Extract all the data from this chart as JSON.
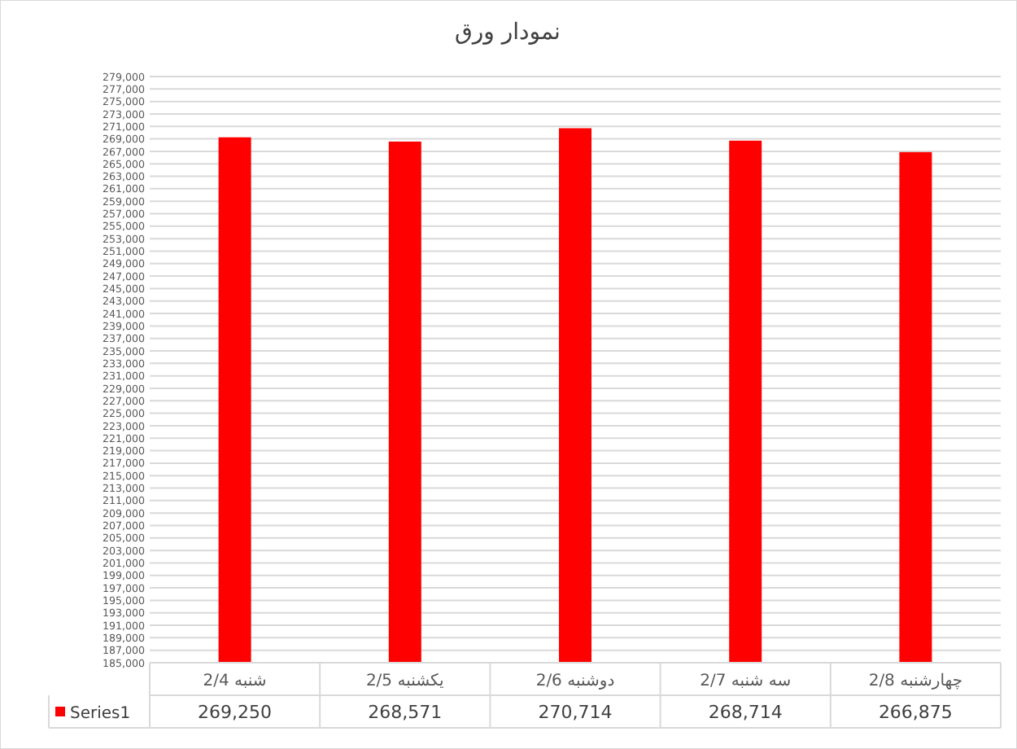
{
  "chart_data": {
    "type": "bar",
    "title": "نمودار ورق",
    "categories": [
      "شنبه 2/4",
      "یکشنبه 2/5",
      "دوشنبه 2/6",
      "سه شنبه 2/7",
      "چهارشنبه 2/8"
    ],
    "series": [
      {
        "name": "Series1",
        "color": "#ff0000",
        "values": [
          269250,
          268571,
          270714,
          268714,
          266875
        ],
        "value_labels": [
          "269,250",
          "268,571",
          "270,714",
          "268,714",
          "266,875"
        ]
      }
    ],
    "ylim": [
      185000,
      279000
    ],
    "yticks": [
      {
        "value": 185000,
        "label": "185,000"
      },
      {
        "value": 187000,
        "label": "187,000"
      },
      {
        "value": 189000,
        "label": "189,000"
      },
      {
        "value": 191000,
        "label": "191,000"
      },
      {
        "value": 193000,
        "label": "193,000"
      },
      {
        "value": 195000,
        "label": "195,000"
      },
      {
        "value": 197000,
        "label": "197,000"
      },
      {
        "value": 199000,
        "label": "199,000"
      },
      {
        "value": 201000,
        "label": "201,000"
      },
      {
        "value": 203000,
        "label": "203,000"
      },
      {
        "value": 205000,
        "label": "205,000"
      },
      {
        "value": 207000,
        "label": "207,000"
      },
      {
        "value": 209000,
        "label": "209,000"
      },
      {
        "value": 211000,
        "label": "211,000"
      },
      {
        "value": 213000,
        "label": "213,000"
      },
      {
        "value": 215000,
        "label": "215,000"
      },
      {
        "value": 217000,
        "label": "217,000"
      },
      {
        "value": 219000,
        "label": "219,000"
      },
      {
        "value": 221000,
        "label": "221,000"
      },
      {
        "value": 223000,
        "label": "223,000"
      },
      {
        "value": 225000,
        "label": "225,000"
      },
      {
        "value": 227000,
        "label": "227,000"
      },
      {
        "value": 229000,
        "label": "229,000"
      },
      {
        "value": 231000,
        "label": "231,000"
      },
      {
        "value": 233000,
        "label": "233,000"
      },
      {
        "value": 235000,
        "label": "235,000"
      },
      {
        "value": 237000,
        "label": "237,000"
      },
      {
        "value": 239000,
        "label": "239,000"
      },
      {
        "value": 241000,
        "label": "241,000"
      },
      {
        "value": 243000,
        "label": "243,000"
      },
      {
        "value": 245000,
        "label": "245,000"
      },
      {
        "value": 247000,
        "label": "247,000"
      },
      {
        "value": 249000,
        "label": "249,000"
      },
      {
        "value": 251000,
        "label": "251,000"
      },
      {
        "value": 253000,
        "label": "253,000"
      },
      {
        "value": 255000,
        "label": "255,000"
      },
      {
        "value": 257000,
        "label": "257,000"
      },
      {
        "value": 259000,
        "label": "259,000"
      },
      {
        "value": 261000,
        "label": "261,000"
      },
      {
        "value": 263000,
        "label": "263,000"
      },
      {
        "value": 265000,
        "label": "265,000"
      },
      {
        "value": 267000,
        "label": "267,000"
      },
      {
        "value": 269000,
        "label": "269,000"
      },
      {
        "value": 271000,
        "label": "271,000"
      },
      {
        "value": 273000,
        "label": "273,000"
      },
      {
        "value": 275000,
        "label": "275,000"
      },
      {
        "value": 277000,
        "label": "277,000"
      },
      {
        "value": 279000,
        "label": "279,000"
      }
    ],
    "grid": "y",
    "legend": "bottom"
  }
}
